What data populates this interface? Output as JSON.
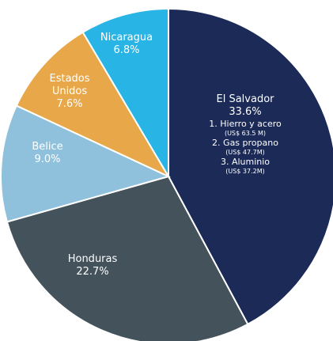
{
  "chart_data": {
    "type": "pie",
    "categories": [
      "El Salvador",
      "Honduras",
      "Belice",
      "Estados Unidos",
      "Nicaragua"
    ],
    "values": [
      33.6,
      22.7,
      9.0,
      7.6,
      6.8
    ],
    "value_labels": [
      "33.6%",
      "22.7%",
      "9.0%",
      "7.6%",
      "6.8%"
    ],
    "colors": [
      "#1b2a57",
      "#44525c",
      "#8fc1dc",
      "#e8a84a",
      "#29b4e6"
    ],
    "annotations": [
      "1. Hierro y acero",
      "(US$ 63.5 M)",
      "2. Gas propano",
      "(US$ 47.7M)",
      "3. Aluminio",
      "(US$ 37.2M)"
    ]
  }
}
